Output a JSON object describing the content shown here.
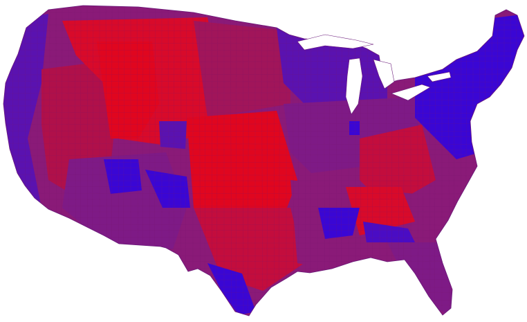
{
  "map": {
    "kind": "county choropleth, contiguous United States",
    "legend_visible": false,
    "title": "",
    "colors": {
      "background": "#ffffff",
      "red_strong": "#e0061f",
      "red": "#c30d3d",
      "red_purple": "#a1155a",
      "purple": "#7e1a86",
      "blue_purple": "#5a12b0",
      "blue_strong": "#3a06d4",
      "county_border": "#7a1a6e"
    },
    "regions": [
      {
        "name": "pacific-coast",
        "tone": "blue_purple"
      },
      {
        "name": "great-basin",
        "tone": "red"
      },
      {
        "name": "mountain-west",
        "tone": "red_strong"
      },
      {
        "name": "southwest",
        "tone": "purple"
      },
      {
        "name": "four-corners",
        "tone": "blue_strong"
      },
      {
        "name": "northern-plains",
        "tone": "red_purple"
      },
      {
        "name": "southern-plains",
        "tone": "red_strong"
      },
      {
        "name": "upper-midwest",
        "tone": "blue_purple"
      },
      {
        "name": "midwest",
        "tone": "purple"
      },
      {
        "name": "appalachia",
        "tone": "red"
      },
      {
        "name": "deep-south",
        "tone": "purple"
      },
      {
        "name": "black-belt",
        "tone": "blue_strong"
      },
      {
        "name": "northeast",
        "tone": "blue_strong"
      },
      {
        "name": "florida",
        "tone": "purple"
      },
      {
        "name": "rio-grande-valley",
        "tone": "blue_strong"
      }
    ]
  }
}
